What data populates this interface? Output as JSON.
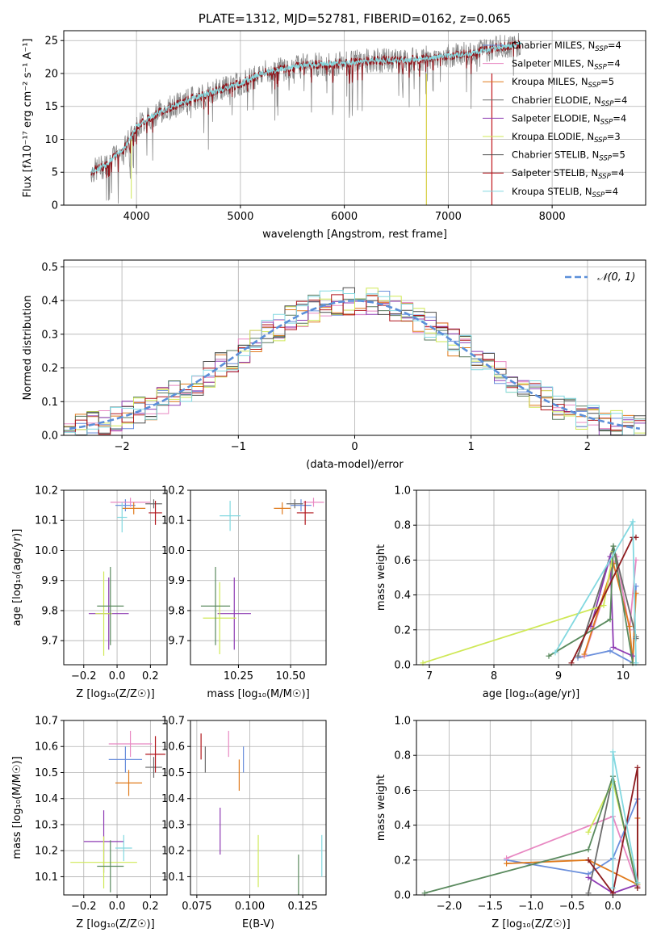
{
  "colors": {
    "series": [
      "#6a8fdc",
      "#e888c2",
      "#e07a1c",
      "#6c6c6c",
      "#8e3bb3",
      "#cfe856",
      "#4b4b4b",
      "#b0151b",
      "#82d8e0"
    ],
    "gaussian": "#5b8fd9",
    "gray_spec": "#8a8a8a",
    "spec_main": "#8e1218",
    "spec_top": "#86d7dc",
    "green": "#5a8a5e",
    "darkred": "#8e1c1f"
  },
  "legend_entries": [
    {
      "name": "Chabrier MILES",
      "n": "4"
    },
    {
      "name": "Salpeter MILES",
      "n": "4"
    },
    {
      "name": "Kroupa MILES",
      "n": "5"
    },
    {
      "name": "Chabrier ELODIE",
      "n": "4"
    },
    {
      "name": "Salpeter ELODIE",
      "n": "4"
    },
    {
      "name": "Kroupa ELODIE",
      "n": "3"
    },
    {
      "name": "Chabrier STELIB",
      "n": "5"
    },
    {
      "name": "Salpeter STELIB",
      "n": "4"
    },
    {
      "name": "Kroupa STELIB",
      "n": "4"
    }
  ],
  "chart_data": [
    {
      "type": "line",
      "title": "PLATE=1312, MJD=52781, FIBERID=0162, z=0.065",
      "xlabel": "wavelength [Angstrom, rest frame]",
      "ylabel": "Flux [fλ10⁻¹⁷ erg cm⁻² s⁻¹ A⁻¹]",
      "xlim": [
        3300,
        8900
      ],
      "ylim": [
        0,
        26.5
      ],
      "xticks": [
        "4000",
        "5000",
        "6000",
        "7000",
        "8000"
      ],
      "yticks": [
        "0",
        "5",
        "10",
        "15",
        "20",
        "25"
      ],
      "continuum": {
        "x": [
          3550,
          3700,
          3900,
          4000,
          4200,
          4500,
          4800,
          5000,
          5200,
          5500,
          5800,
          6000,
          6300,
          6600,
          6900,
          7200,
          7500,
          7700
        ],
        "y": [
          5,
          6,
          9,
          12,
          14,
          16,
          17.5,
          18.5,
          20,
          21,
          21.5,
          21.5,
          22,
          22,
          22.5,
          23,
          24,
          24.5
        ]
      }
    },
    {
      "type": "bar",
      "xlabel": "(data-model)/error",
      "ylabel": "Normed distribution",
      "xlim": [
        -2.5,
        2.5
      ],
      "ylim": [
        0,
        0.52
      ],
      "xticks": [
        "−2",
        "−1",
        "0",
        "1",
        "2"
      ],
      "yticks": [
        "0.0",
        "0.1",
        "0.2",
        "0.3",
        "0.4",
        "0.5"
      ],
      "legend": "𝒩(0, 1)",
      "bin_width": 0.1,
      "bin_centers": [
        -2.45,
        -2.35,
        -2.25,
        -2.15,
        -2.05,
        -1.95,
        -1.85,
        -1.75,
        -1.65,
        -1.55,
        -1.45,
        -1.35,
        -1.25,
        -1.15,
        -1.05,
        -0.95,
        -0.85,
        -0.75,
        -0.65,
        -0.55,
        -0.45,
        -0.35,
        -0.25,
        -0.15,
        -0.05,
        0.05,
        0.15,
        0.25,
        0.35,
        0.45,
        0.55,
        0.65,
        0.75,
        0.85,
        0.95,
        1.05,
        1.15,
        1.25,
        1.35,
        1.45,
        1.55,
        1.65,
        1.75,
        1.85,
        1.95,
        2.05,
        2.15,
        2.25,
        2.35,
        2.45
      ],
      "gaussian_profile": [
        0.02,
        0.025,
        0.032,
        0.04,
        0.049,
        0.06,
        0.072,
        0.086,
        0.102,
        0.12,
        0.139,
        0.16,
        0.182,
        0.206,
        0.23,
        0.254,
        0.278,
        0.301,
        0.323,
        0.343,
        0.361,
        0.375,
        0.387,
        0.395,
        0.399,
        0.399,
        0.395,
        0.387,
        0.375,
        0.361,
        0.343,
        0.323,
        0.301,
        0.278,
        0.254,
        0.23,
        0.206,
        0.182,
        0.16,
        0.139,
        0.12,
        0.102,
        0.086,
        0.072,
        0.06,
        0.049,
        0.04,
        0.032,
        0.025,
        0.02
      ]
    },
    {
      "type": "scatter",
      "xlabel": "Z [log₁₀(Z/Z☉)]",
      "ylabel": "age  [log₁₀(age/yr)]",
      "xlim": [
        -0.32,
        0.3
      ],
      "ylim": [
        9.62,
        10.2
      ],
      "xticks": [
        "−0.2",
        "0.0",
        "0.2"
      ],
      "yticks": [
        "9.7",
        "9.8",
        "9.9",
        "10.0",
        "10.1",
        "10.2"
      ],
      "points": [
        {
          "x": 0.05,
          "y": 10.15,
          "xerr": 0.06,
          "yerr": 0.02
        },
        {
          "x": 0.08,
          "y": 10.16,
          "xerr": 0.12,
          "yerr": 0.015
        },
        {
          "x": 0.1,
          "y": 10.14,
          "xerr": 0.07,
          "yerr": 0.02
        },
        {
          "x": 0.22,
          "y": 10.155,
          "xerr": 0.05,
          "yerr": 0.015
        },
        {
          "x": -0.05,
          "y": 9.79,
          "xerr": 0.12,
          "yerr": 0.12
        },
        {
          "x": -0.08,
          "y": 9.79,
          "xerr": 0.05,
          "yerr": 0.14
        },
        {
          "x": -0.04,
          "y": 9.815,
          "xerr": 0.08,
          "yerr": 0.13
        },
        {
          "x": 0.23,
          "y": 10.125,
          "xerr": 0.04,
          "yerr": 0.04
        },
        {
          "x": 0.03,
          "y": 10.11,
          "xerr": 0.03,
          "yerr": 0.05
        }
      ]
    },
    {
      "type": "scatter",
      "xlabel": "mass [log₁₀(M/M☉)]",
      "xlim": [
        10.02,
        10.67
      ],
      "ylim": [
        9.62,
        10.2
      ],
      "xticks": [
        "10.25",
        "10.50"
      ],
      "yticks": [
        "9.7",
        "9.8",
        "9.9",
        "10.0",
        "10.1",
        "10.2"
      ],
      "points": [
        {
          "x": 10.55,
          "y": 10.15,
          "xerr": 0.05,
          "yerr": 0.02
        },
        {
          "x": 10.61,
          "y": 10.16,
          "xerr": 0.05,
          "yerr": 0.015
        },
        {
          "x": 10.46,
          "y": 10.14,
          "xerr": 0.04,
          "yerr": 0.02
        },
        {
          "x": 10.52,
          "y": 10.155,
          "xerr": 0.04,
          "yerr": 0.015
        },
        {
          "x": 10.23,
          "y": 9.79,
          "xerr": 0.08,
          "yerr": 0.12
        },
        {
          "x": 10.16,
          "y": 9.775,
          "xerr": 0.08,
          "yerr": 0.12
        },
        {
          "x": 10.14,
          "y": 9.815,
          "xerr": 0.07,
          "yerr": 0.13
        },
        {
          "x": 10.57,
          "y": 10.125,
          "xerr": 0.04,
          "yerr": 0.04
        },
        {
          "x": 10.21,
          "y": 10.115,
          "xerr": 0.05,
          "yerr": 0.05
        }
      ]
    },
    {
      "type": "line",
      "xlabel": "age  [log₁₀(age/yr)]",
      "ylabel": "mass weight",
      "xlim": [
        6.8,
        10.35
      ],
      "ylim": [
        0,
        1.0
      ],
      "xticks": [
        "7",
        "8",
        "9",
        "10"
      ],
      "yticks": [
        "0.0",
        "0.2",
        "0.4",
        "0.6",
        "0.8",
        "1.0"
      ],
      "series": [
        {
          "x": [
            9.3,
            9.8,
            10.15,
            10.2
          ],
          "y": [
            0.04,
            0.08,
            0.01,
            0.45
          ]
        },
        {
          "x": [
            9.4,
            9.9,
            10.1,
            10.2
          ],
          "y": [
            0.05,
            0.62,
            0.2,
            0.6
          ]
        },
        {
          "x": [
            9.4,
            9.85,
            10.1,
            10.15,
            10.2
          ],
          "y": [
            0.06,
            0.58,
            0.22,
            0.01,
            0.41
          ]
        },
        {
          "x": [
            9.3,
            9.85,
            10.2,
            10.2
          ],
          "y": [
            0.05,
            0.68,
            0.16,
            0.15
          ]
        },
        {
          "x": [
            9.5,
            9.8,
            9.85,
            10.15
          ],
          "y": [
            0.22,
            0.62,
            0.1,
            0.05
          ]
        },
        {
          "x": [
            6.9,
            9.7,
            9.85
          ],
          "y": [
            0.01,
            0.34,
            0.65
          ]
        },
        {
          "x": [
            8.85,
            9.8,
            9.85,
            10.15
          ],
          "y": [
            0.05,
            0.26,
            0.68,
            0.01
          ]
        },
        {
          "x": [
            9.2,
            10.15,
            10.2
          ],
          "y": [
            0.01,
            0.73,
            0.73
          ]
        },
        {
          "x": [
            8.95,
            10.15,
            10.2
          ],
          "y": [
            0.07,
            0.82,
            0.01
          ]
        }
      ]
    },
    {
      "type": "scatter",
      "xlabel": "Z [log₁₀(Z/Z☉)]",
      "ylabel": "mass [log₁₀(M/M☉)]",
      "xlim": [
        -0.32,
        0.3
      ],
      "ylim": [
        10.03,
        10.7
      ],
      "xticks": [
        "−0.2",
        "0.0",
        "0.2"
      ],
      "yticks": [
        "10.1",
        "10.2",
        "10.3",
        "10.4",
        "10.5",
        "10.6",
        "10.7"
      ],
      "points": [
        {
          "x": 0.05,
          "y": 10.55,
          "xerr": 0.1,
          "yerr": 0.05
        },
        {
          "x": 0.08,
          "y": 10.61,
          "xerr": 0.13,
          "yerr": 0.05
        },
        {
          "x": 0.07,
          "y": 10.46,
          "xerr": 0.08,
          "yerr": 0.05
        },
        {
          "x": 0.22,
          "y": 10.52,
          "xerr": 0.05,
          "yerr": 0.04
        },
        {
          "x": -0.08,
          "y": 10.235,
          "xerr": 0.12,
          "yerr": 0.12
        },
        {
          "x": -0.08,
          "y": 10.155,
          "xerr": 0.2,
          "yerr": 0.1
        },
        {
          "x": -0.04,
          "y": 10.14,
          "xerr": 0.08,
          "yerr": 0.1
        },
        {
          "x": 0.23,
          "y": 10.57,
          "xerr": 0.06,
          "yerr": 0.07
        },
        {
          "x": 0.04,
          "y": 10.21,
          "xerr": 0.05,
          "yerr": 0.05
        }
      ]
    },
    {
      "type": "scatter",
      "xlabel": "E(B-V)",
      "xlim": [
        0.072,
        0.136
      ],
      "ylim": [
        10.03,
        10.7
      ],
      "xticks": [
        "0.075",
        "0.100",
        "0.125"
      ],
      "yticks": [
        "10.1",
        "10.2",
        "10.3",
        "10.4",
        "10.5",
        "10.6",
        "10.7"
      ],
      "points": [
        {
          "x": 0.097,
          "y": 10.55,
          "yerr": 0.05
        },
        {
          "x": 0.09,
          "y": 10.61,
          "yerr": 0.05
        },
        {
          "x": 0.095,
          "y": 10.49,
          "yerr": 0.06
        },
        {
          "x": 0.079,
          "y": 10.55,
          "yerr": 0.05
        },
        {
          "x": 0.086,
          "y": 10.275,
          "yerr": 0.09
        },
        {
          "x": 0.104,
          "y": 10.16,
          "yerr": 0.1
        },
        {
          "x": 0.123,
          "y": 10.085,
          "yerr": 0.1
        },
        {
          "x": 0.077,
          "y": 10.6,
          "yerr": 0.05
        },
        {
          "x": 0.134,
          "y": 10.18,
          "yerr": 0.08
        }
      ]
    },
    {
      "type": "line",
      "xlabel": "Z [log₁₀(Z/Z☉)]",
      "ylabel": "mass weight",
      "xlim": [
        -2.4,
        0.4
      ],
      "ylim": [
        0,
        1.0
      ],
      "xticks": [
        "−2.0",
        "−1.5",
        "−1.0",
        "−0.5",
        "0.0"
      ],
      "yticks": [
        "0.0",
        "0.2",
        "0.4",
        "0.6",
        "0.8",
        "1.0"
      ],
      "series": [
        {
          "x": [
            -1.3,
            -0.3,
            0.0,
            0.3
          ],
          "y": [
            0.2,
            0.12,
            0.21,
            0.55
          ]
        },
        {
          "x": [
            -1.3,
            0.0,
            0.3
          ],
          "y": [
            0.21,
            0.45,
            0.05
          ]
        },
        {
          "x": [
            -1.3,
            -0.3,
            0.3,
            0.3
          ],
          "y": [
            0.18,
            0.2,
            0.06,
            0.44
          ]
        },
        {
          "x": [
            -0.3,
            0.0,
            0.3
          ],
          "y": [
            0.01,
            0.68,
            0.04
          ]
        },
        {
          "x": [
            -0.3,
            0.0,
            0.3
          ],
          "y": [
            0.1,
            0.01,
            0.06
          ]
        },
        {
          "x": [
            -0.3,
            0.0,
            0.3
          ],
          "y": [
            0.36,
            0.65,
            0.06
          ]
        },
        {
          "x": [
            -2.3,
            -0.3,
            0.0,
            0.3
          ],
          "y": [
            0.01,
            0.26,
            0.68,
            0.04
          ]
        },
        {
          "x": [
            -0.3,
            0.0,
            0.3,
            0.3
          ],
          "y": [
            0.2,
            0.01,
            0.73,
            0.04
          ]
        },
        {
          "x": [
            0.0,
            0.0,
            0.3
          ],
          "y": [
            0.04,
            0.82,
            0.07
          ]
        }
      ]
    }
  ]
}
